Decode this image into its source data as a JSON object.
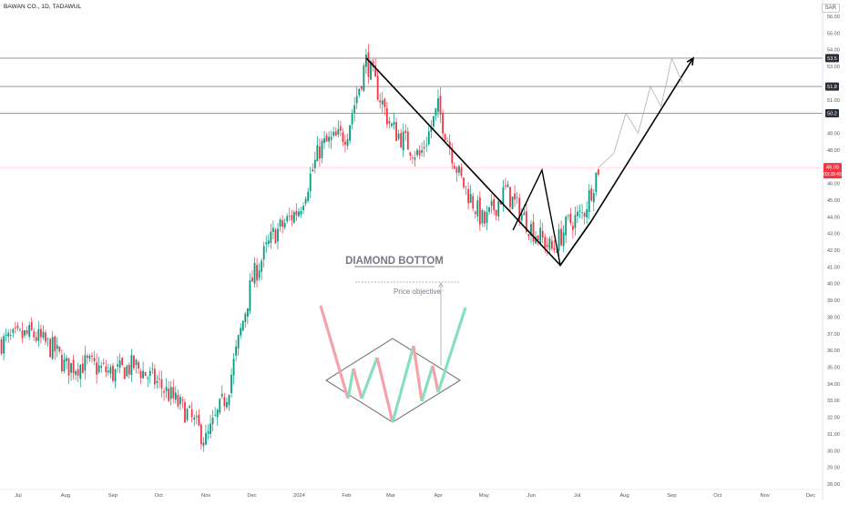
{
  "header": {
    "symbol": "BAWAN CO., 1D, TADAWUL",
    "currency": "SAR"
  },
  "chart_data": {
    "type": "candlestick",
    "ylim": [
      28.0,
      56.0
    ],
    "y_ticks": [
      "28.00",
      "29.00",
      "30.00",
      "31.00",
      "32.00",
      "33.00",
      "34.00",
      "35.00",
      "36.00",
      "37.00",
      "38.00",
      "39.00",
      "40.00",
      "41.00",
      "42.00",
      "43.00",
      "44.00",
      "45.00",
      "46.00",
      "48.00",
      "49.00",
      "51.00",
      "53.00",
      "54.00",
      "55.00",
      "56.00"
    ],
    "x_ticks": [
      {
        "label": "Jul",
        "date": "2023-07-01"
      },
      {
        "label": "Aug",
        "date": "2023-08-01"
      },
      {
        "label": "Sep",
        "date": "2023-09-01"
      },
      {
        "label": "Oct",
        "date": "2023-10-01"
      },
      {
        "label": "Nov",
        "date": "2023-11-01"
      },
      {
        "label": "Dec",
        "date": "2023-12-01"
      },
      {
        "label": "2024",
        "date": "2024-01-01"
      },
      {
        "label": "Feb",
        "date": "2024-02-01"
      },
      {
        "label": "Mar",
        "date": "2024-03-01"
      },
      {
        "label": "Apr",
        "date": "2024-04-01"
      },
      {
        "label": "May",
        "date": "2024-05-01"
      },
      {
        "label": "Jun",
        "date": "2024-06-01"
      },
      {
        "label": "Jul",
        "date": "2024-07-01"
      },
      {
        "label": "Aug",
        "date": "2024-08-01"
      },
      {
        "label": "Sep",
        "date": "2024-09-01"
      },
      {
        "label": "Oct",
        "date": "2024-10-01"
      },
      {
        "label": "Nov",
        "date": "2024-11-01"
      },
      {
        "label": "Dec",
        "date": "2024-12-01"
      }
    ],
    "horizontal_levels": [
      {
        "label": "53.5",
        "value": 53.5
      },
      {
        "label": "51.8",
        "value": 51.8
      },
      {
        "label": "50.2",
        "value": 50.2
      }
    ],
    "last_price": {
      "label": "46.95",
      "value": 46.95,
      "countdown": "03:39:45"
    },
    "close_path": [
      {
        "date": "2023-06-20",
        "close": 36.5
      },
      {
        "date": "2023-07-10",
        "close": 37.0
      },
      {
        "date": "2023-07-25",
        "close": 36.0
      },
      {
        "date": "2023-08-01",
        "close": 35.0
      },
      {
        "date": "2023-08-15",
        "close": 35.2
      },
      {
        "date": "2023-09-01",
        "close": 34.6
      },
      {
        "date": "2023-09-15",
        "close": 35.1
      },
      {
        "date": "2023-10-01",
        "close": 34.0
      },
      {
        "date": "2023-10-20",
        "close": 32.2
      },
      {
        "date": "2023-11-01",
        "close": 30.6
      },
      {
        "date": "2023-11-15",
        "close": 33.5
      },
      {
        "date": "2023-12-01",
        "close": 40.2
      },
      {
        "date": "2023-12-15",
        "close": 42.9
      },
      {
        "date": "2024-01-01",
        "close": 44.5
      },
      {
        "date": "2024-01-15",
        "close": 48.2
      },
      {
        "date": "2024-02-01",
        "close": 49.0
      },
      {
        "date": "2024-02-14",
        "close": 53.4
      },
      {
        "date": "2024-03-01",
        "close": 49.4
      },
      {
        "date": "2024-03-20",
        "close": 47.6
      },
      {
        "date": "2024-04-01",
        "close": 50.5
      },
      {
        "date": "2024-04-15",
        "close": 46.4
      },
      {
        "date": "2024-05-01",
        "close": 43.6
      },
      {
        "date": "2024-05-15",
        "close": 45.6
      },
      {
        "date": "2024-06-01",
        "close": 43.3
      },
      {
        "date": "2024-06-15",
        "close": 42.0
      },
      {
        "date": "2024-06-25",
        "close": 43.6
      },
      {
        "date": "2024-07-05",
        "close": 44.2
      },
      {
        "date": "2024-07-15",
        "close": 46.95
      }
    ],
    "drawn_path": [
      {
        "date": "2024-02-14",
        "value": 53.5
      },
      {
        "date": "2024-06-20",
        "value": 41.1
      },
      {
        "date": "2024-07-10",
        "value": 43.7
      },
      {
        "date": "2024-09-15",
        "value": 53.5
      }
    ],
    "inner_diamond": [
      {
        "date": "2024-05-20",
        "value": 43.2
      },
      {
        "date": "2024-06-08",
        "value": 46.8
      },
      {
        "date": "2024-06-20",
        "value": 41.1
      },
      {
        "date": "2024-07-10",
        "value": 43.7
      }
    ],
    "projection_path": [
      {
        "date": "2024-07-15",
        "value": 46.95
      },
      {
        "date": "2024-07-25",
        "value": 47.8
      },
      {
        "date": "2024-08-02",
        "value": 50.2
      },
      {
        "date": "2024-08-10",
        "value": 49.0
      },
      {
        "date": "2024-08-18",
        "value": 51.8
      },
      {
        "date": "2024-08-25",
        "value": 50.6
      },
      {
        "date": "2024-09-01",
        "value": 53.5
      },
      {
        "date": "2024-09-08",
        "value": 52.0
      }
    ],
    "pattern": {
      "title": "DIAMOND BOTTOM",
      "annotation": "Price objective"
    }
  }
}
